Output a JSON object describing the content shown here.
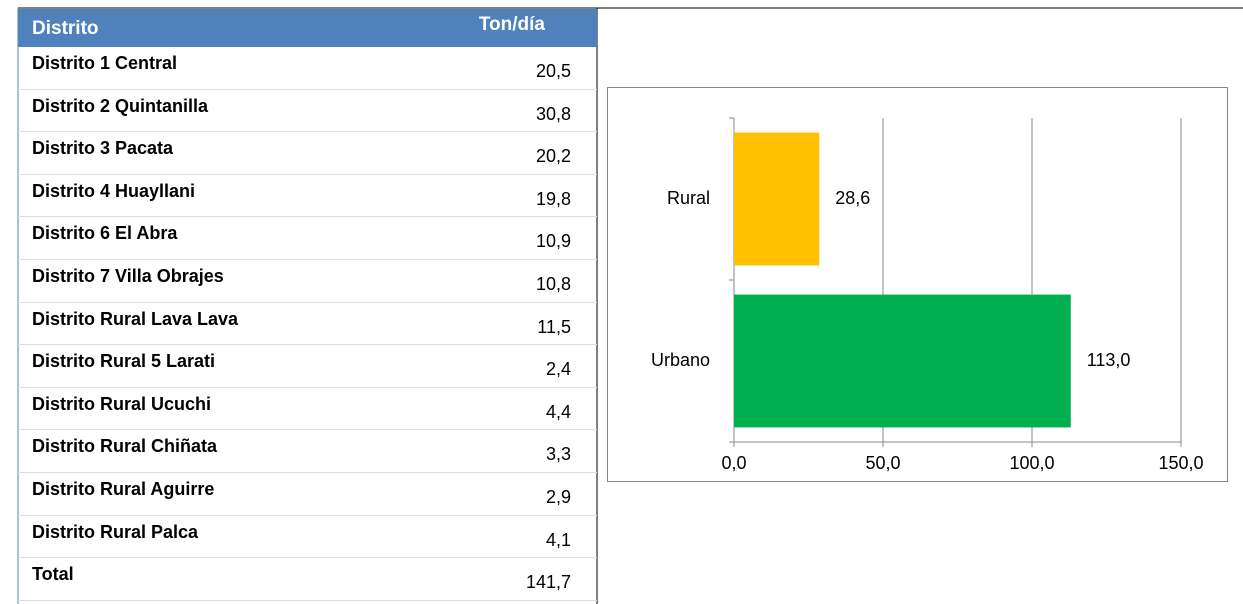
{
  "table": {
    "header": [
      "Distrito",
      "Ton/día"
    ],
    "rows": [
      [
        "Distrito 1 Central",
        "20,5"
      ],
      [
        "Distrito 2 Quintanilla",
        "30,8"
      ],
      [
        "Distrito 3 Pacata",
        "20,2"
      ],
      [
        "Distrito 4 Huayllani",
        "19,8"
      ],
      [
        "Distrito 6 El Abra",
        "10,9"
      ],
      [
        "Distrito 7 Villa Obrajes",
        "10,8"
      ],
      [
        "Distrito Rural Lava Lava",
        "11,5"
      ],
      [
        "Distrito Rural 5 Larati",
        "2,4"
      ],
      [
        "Distrito Rural Ucuchi",
        "4,4"
      ],
      [
        "Distrito Rural Chiñata",
        "3,3"
      ],
      [
        "Distrito Rural Aguirre",
        "2,9"
      ],
      [
        "Distrito Rural Palca",
        "4,1"
      ],
      [
        "Total",
        "141,7"
      ]
    ]
  },
  "chart_data": {
    "type": "hbar",
    "categories": [
      "Rural",
      "Urbano"
    ],
    "values": [
      28.6,
      113.0
    ],
    "value_labels": [
      "28,6",
      "113,0"
    ],
    "colors": [
      "#ffc000",
      "#00b050"
    ],
    "xlim": [
      0,
      150
    ],
    "xticks": [
      {
        "value": 0,
        "label": "0,0"
      },
      {
        "value": 50,
        "label": "50,0"
      },
      {
        "value": 100,
        "label": "100,0"
      },
      {
        "value": 150,
        "label": "150,0"
      }
    ],
    "grid": true
  }
}
